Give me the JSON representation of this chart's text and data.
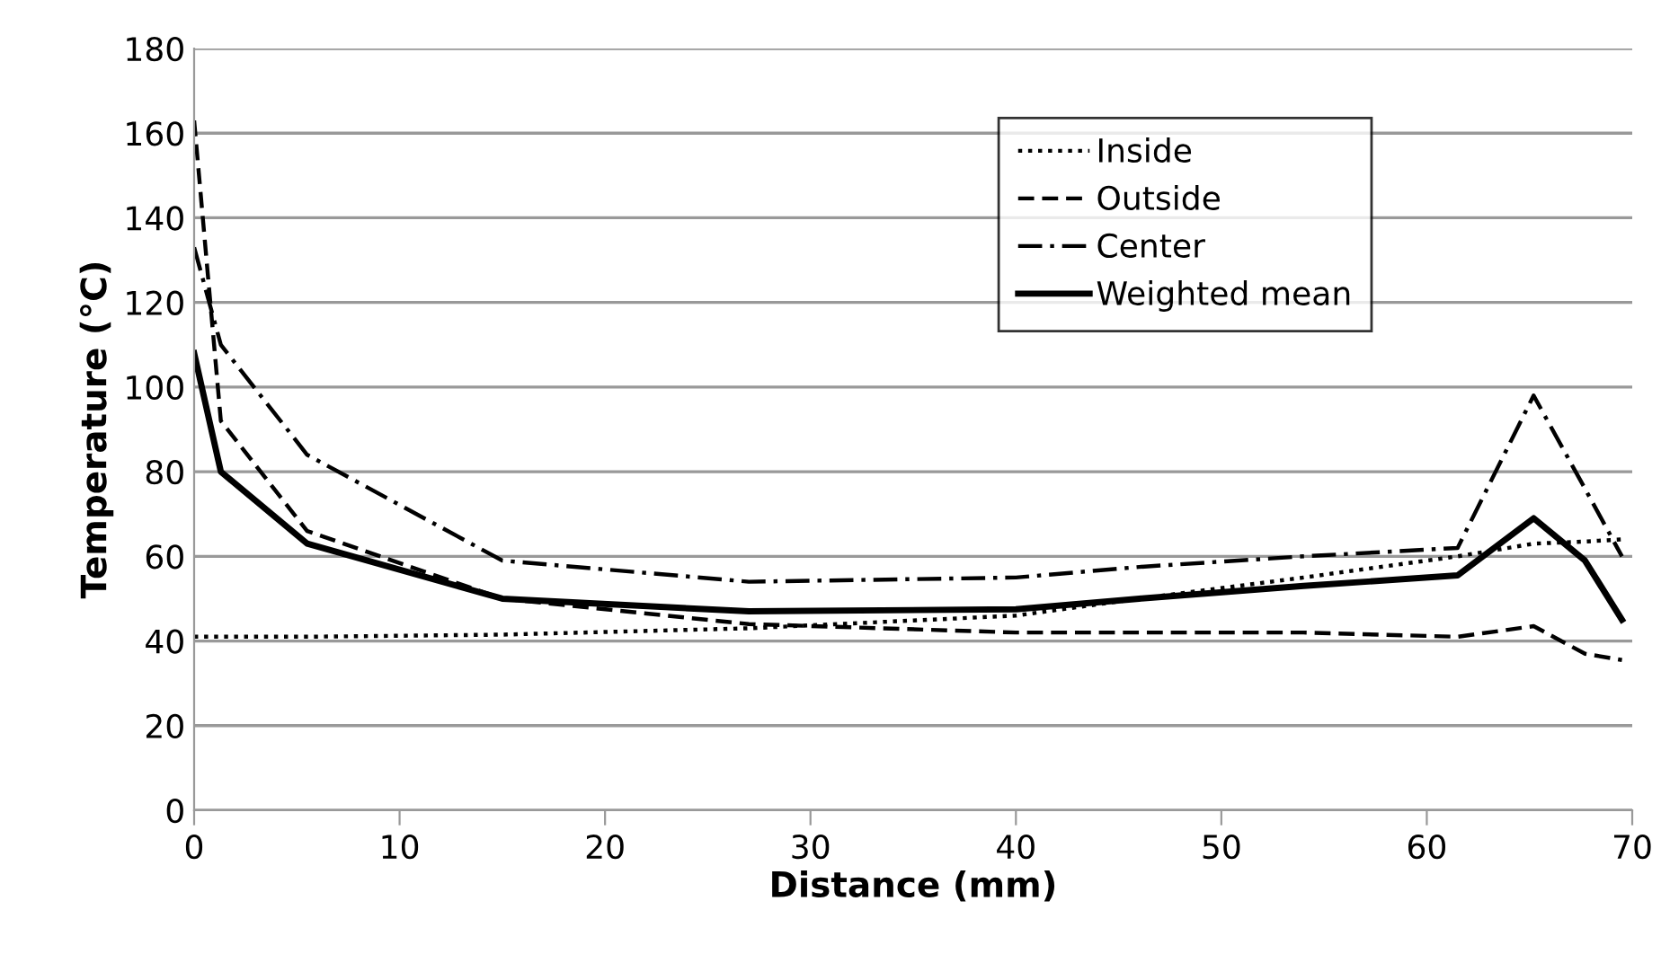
{
  "chart_data": {
    "type": "line",
    "xlabel": "Distance (mm)",
    "ylabel": "Temperature (°C)",
    "x": [
      0,
      1.3,
      5.5,
      15,
      27,
      40,
      46,
      54,
      61.5,
      65.2,
      67.7,
      69.5
    ],
    "series": [
      {
        "name": "Inside",
        "color": "#000000",
        "line_style": "dotted",
        "values": [
          41,
          41,
          41,
          41.5,
          43,
          46,
          50,
          55,
          60,
          63,
          63.5,
          64
        ]
      },
      {
        "name": "Outside",
        "color": "#000000",
        "line_style": "dashed",
        "values": [
          163,
          92,
          66,
          50,
          44,
          42,
          42,
          42,
          41,
          43.5,
          37,
          35.5
        ]
      },
      {
        "name": "Center",
        "color": "#000000",
        "line_style": "dashdot",
        "values": [
          133,
          110,
          84,
          59,
          54,
          55,
          57.5,
          60,
          62,
          98,
          76,
          60
        ]
      },
      {
        "name": "Weighted mean",
        "color": "#000000",
        "line_style": "solid",
        "values": [
          108,
          80,
          63,
          50,
          47,
          47.5,
          50,
          53,
          55.5,
          69,
          59,
          45
        ]
      }
    ],
    "xlim": [
      0,
      70
    ],
    "xticks": [
      0,
      10,
      20,
      30,
      40,
      50,
      60,
      70
    ],
    "ylim": [
      0,
      180
    ],
    "yticks": [
      0,
      20,
      40,
      60,
      80,
      100,
      120,
      140,
      160,
      180
    ],
    "grid": "y",
    "legend": "top right",
    "marker": "none"
  }
}
